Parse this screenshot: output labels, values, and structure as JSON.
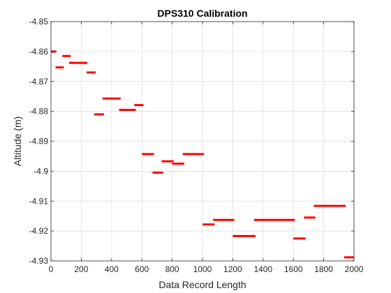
{
  "chart_data": {
    "type": "scatter",
    "title": "DPS310 Calibration",
    "xlabel": "Data Record Length",
    "ylabel": "Altitude (m)",
    "xlim": [
      0,
      2000
    ],
    "ylim": [
      -4.93,
      -4.85
    ],
    "xticks": [
      0,
      200,
      400,
      600,
      800,
      1000,
      1200,
      1400,
      1600,
      1800,
      2000
    ],
    "xtick_labels": [
      "0",
      "200",
      "400",
      "600",
      "800",
      "1000",
      "1200",
      "1400",
      "1600",
      "1800",
      "2000"
    ],
    "yticks": [
      -4.85,
      -4.86,
      -4.87,
      -4.88,
      -4.89,
      -4.9,
      -4.91,
      -4.92,
      -4.93
    ],
    "ytick_labels": [
      "-4.85",
      "-4.86",
      "-4.87",
      "-4.88",
      "-4.89",
      "-4.9",
      "-4.91",
      "-4.92",
      "-4.93"
    ],
    "grid": true,
    "marker_color": "#ff0000",
    "segments": [
      {
        "x_start": 0,
        "x_end": 35,
        "y": -4.86
      },
      {
        "x_start": 30,
        "x_end": 85,
        "y": -4.8653
      },
      {
        "x_start": 75,
        "x_end": 130,
        "y": -4.8615
      },
      {
        "x_start": 120,
        "x_end": 240,
        "y": -4.8638
      },
      {
        "x_start": 235,
        "x_end": 295,
        "y": -4.867
      },
      {
        "x_start": 285,
        "x_end": 350,
        "y": -4.881
      },
      {
        "x_start": 340,
        "x_end": 460,
        "y": -4.8757
      },
      {
        "x_start": 450,
        "x_end": 560,
        "y": -4.8795
      },
      {
        "x_start": 550,
        "x_end": 610,
        "y": -4.8779
      },
      {
        "x_start": 600,
        "x_end": 680,
        "y": -4.8943
      },
      {
        "x_start": 670,
        "x_end": 740,
        "y": -4.9005
      },
      {
        "x_start": 730,
        "x_end": 810,
        "y": -4.8967
      },
      {
        "x_start": 800,
        "x_end": 880,
        "y": -4.8975
      },
      {
        "x_start": 870,
        "x_end": 1010,
        "y": -4.8943
      },
      {
        "x_start": 1000,
        "x_end": 1080,
        "y": -4.9178
      },
      {
        "x_start": 1070,
        "x_end": 1210,
        "y": -4.9163
      },
      {
        "x_start": 1200,
        "x_end": 1350,
        "y": -4.9217
      },
      {
        "x_start": 1340,
        "x_end": 1610,
        "y": -4.9163
      },
      {
        "x_start": 1600,
        "x_end": 1680,
        "y": -4.9225
      },
      {
        "x_start": 1670,
        "x_end": 1745,
        "y": -4.9155
      },
      {
        "x_start": 1735,
        "x_end": 1945,
        "y": -4.9116
      },
      {
        "x_start": 1935,
        "x_end": 2000,
        "y": -4.9288
      }
    ]
  }
}
